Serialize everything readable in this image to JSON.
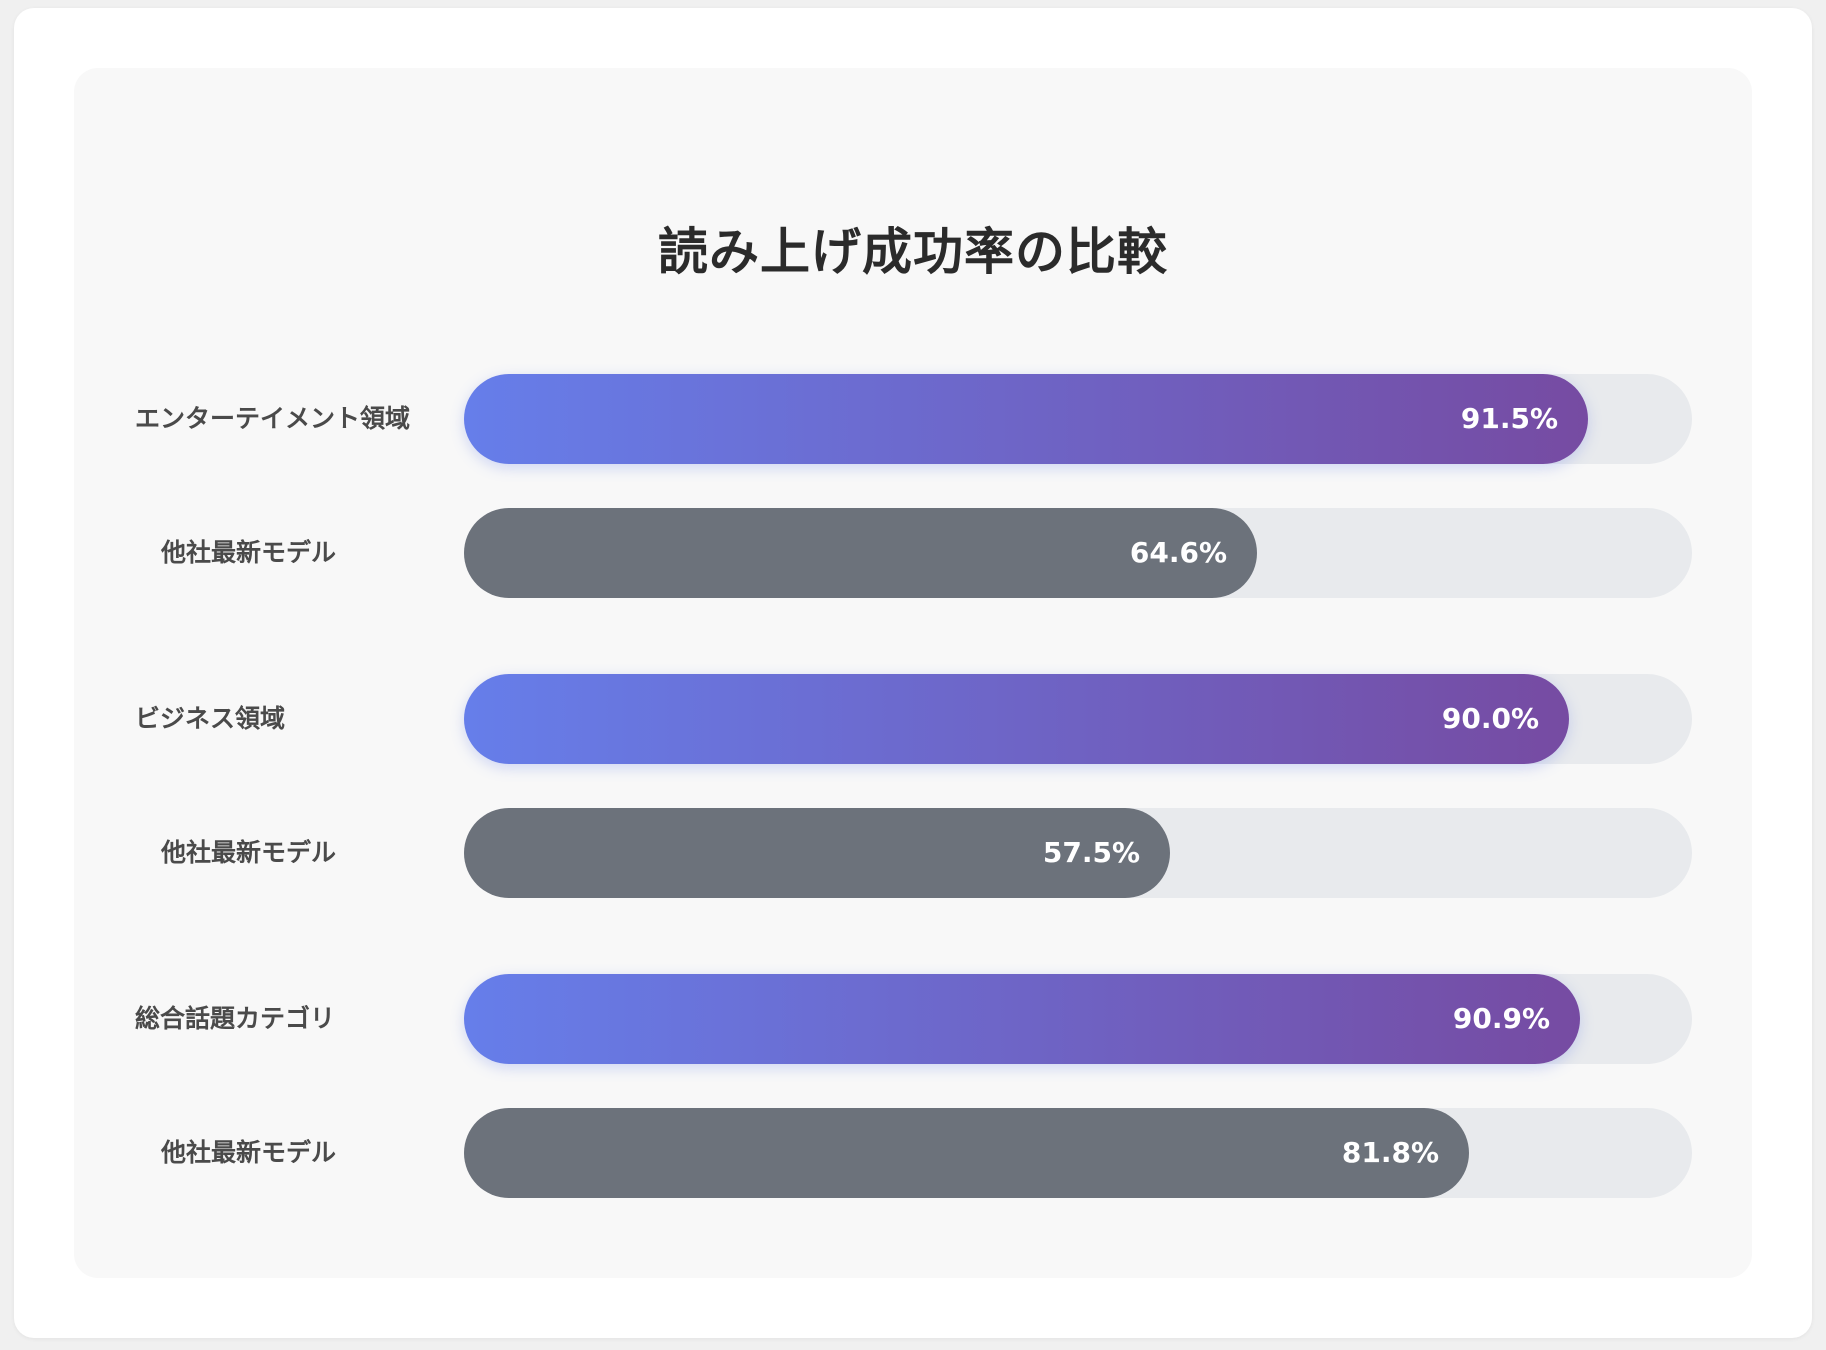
{
  "chart_data": {
    "type": "bar",
    "orientation": "horizontal",
    "title": "読み上げ成功率の比較",
    "unit": "%",
    "xlim": [
      0,
      100
    ],
    "colors": {
      "ours_gradient_start": "#667eea",
      "ours_gradient_end": "#764ba2",
      "other": "#6c727b",
      "track": "#e8eaed"
    },
    "groups": [
      {
        "rows": [
          {
            "label": "エンターテイメント領域",
            "value": 91.5,
            "value_label": "91.5%",
            "kind": "ours"
          },
          {
            "label": "他社最新モデル",
            "value": 64.6,
            "value_label": "64.6%",
            "kind": "other"
          }
        ]
      },
      {
        "rows": [
          {
            "label": "ビジネス領域",
            "value": 90.0,
            "value_label": "90.0%",
            "kind": "ours"
          },
          {
            "label": "他社最新モデル",
            "value": 57.5,
            "value_label": "57.5%",
            "kind": "other"
          }
        ]
      },
      {
        "rows": [
          {
            "label": "総合話題カテゴリ",
            "value": 90.9,
            "value_label": "90.9%",
            "kind": "ours"
          },
          {
            "label": "他社最新モデル",
            "value": 81.8,
            "value_label": "81.8%",
            "kind": "other"
          }
        ]
      }
    ]
  }
}
